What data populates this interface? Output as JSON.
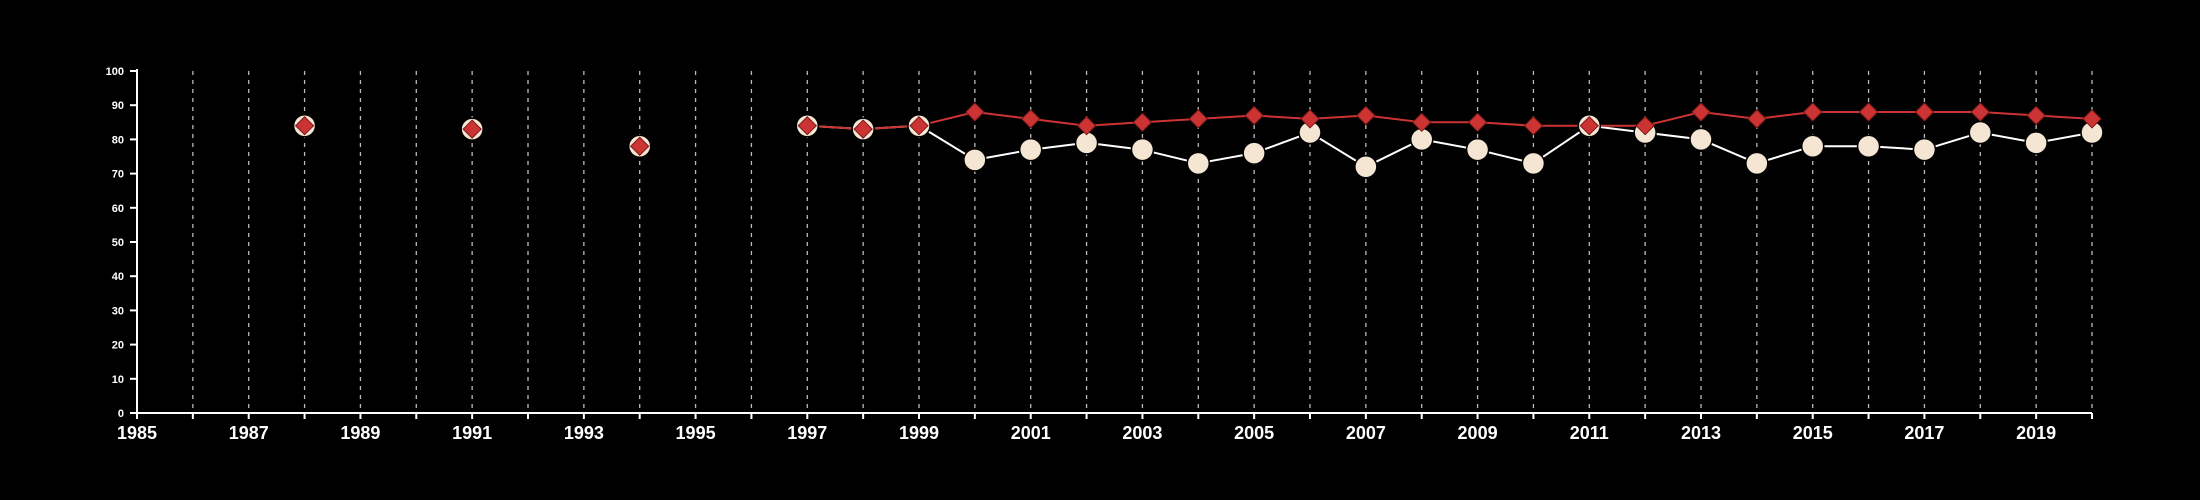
{
  "colors": {
    "background": "#000000",
    "axis": "#ffffff",
    "grid": "#bbbbbb",
    "series_1_line": "#ffffff",
    "series_1_marker": "#f5e6d3",
    "series_2": "#cc3333"
  },
  "chart_data": {
    "type": "line",
    "title": "",
    "xlabel": "",
    "ylabel": "",
    "xlim": [
      1985,
      2020
    ],
    "ylim": [
      0,
      100
    ],
    "x_ticks": [
      "1985",
      "1987",
      "1989",
      "1991",
      "1993",
      "1995",
      "1997",
      "1999",
      "2001",
      "2003",
      "2005",
      "2007",
      "2009",
      "2011",
      "2013",
      "2015",
      "2017",
      "2019"
    ],
    "y_ticks": [
      "0",
      "10",
      "20",
      "30",
      "40",
      "50",
      "60",
      "70",
      "80",
      "90",
      "100"
    ],
    "grid": "vertical dashed lines at each year",
    "legend": "none",
    "series": [
      {
        "marker": "circle",
        "x": [
          1988,
          1991,
          1994,
          1997,
          1998,
          1999,
          2000,
          2001,
          2002,
          2003,
          2004,
          2005,
          2006,
          2007,
          2008,
          2009,
          2010,
          2011,
          2012,
          2013,
          2014,
          2015,
          2016,
          2017,
          2018,
          2019,
          2020
        ],
        "values": [
          84,
          83,
          78,
          84,
          83,
          84,
          74,
          77,
          79,
          77,
          73,
          76,
          82,
          72,
          80,
          77,
          73,
          84,
          82,
          80,
          73,
          78,
          78,
          77,
          82,
          79,
          82
        ],
        "connected_from": 1997
      },
      {
        "marker": "diamond",
        "x": [
          1988,
          1991,
          1994,
          1997,
          1998,
          1999,
          2000,
          2001,
          2002,
          2003,
          2004,
          2005,
          2006,
          2007,
          2008,
          2009,
          2010,
          2011,
          2012,
          2013,
          2014,
          2015,
          2016,
          2017,
          2018,
          2019,
          2020
        ],
        "values": [
          84,
          83,
          78,
          84,
          83,
          84,
          88,
          86,
          84,
          85,
          86,
          87,
          86,
          87,
          85,
          85,
          84,
          84,
          84,
          88,
          86,
          88,
          88,
          88,
          88,
          87,
          86
        ],
        "connected_from": 1997
      }
    ]
  }
}
